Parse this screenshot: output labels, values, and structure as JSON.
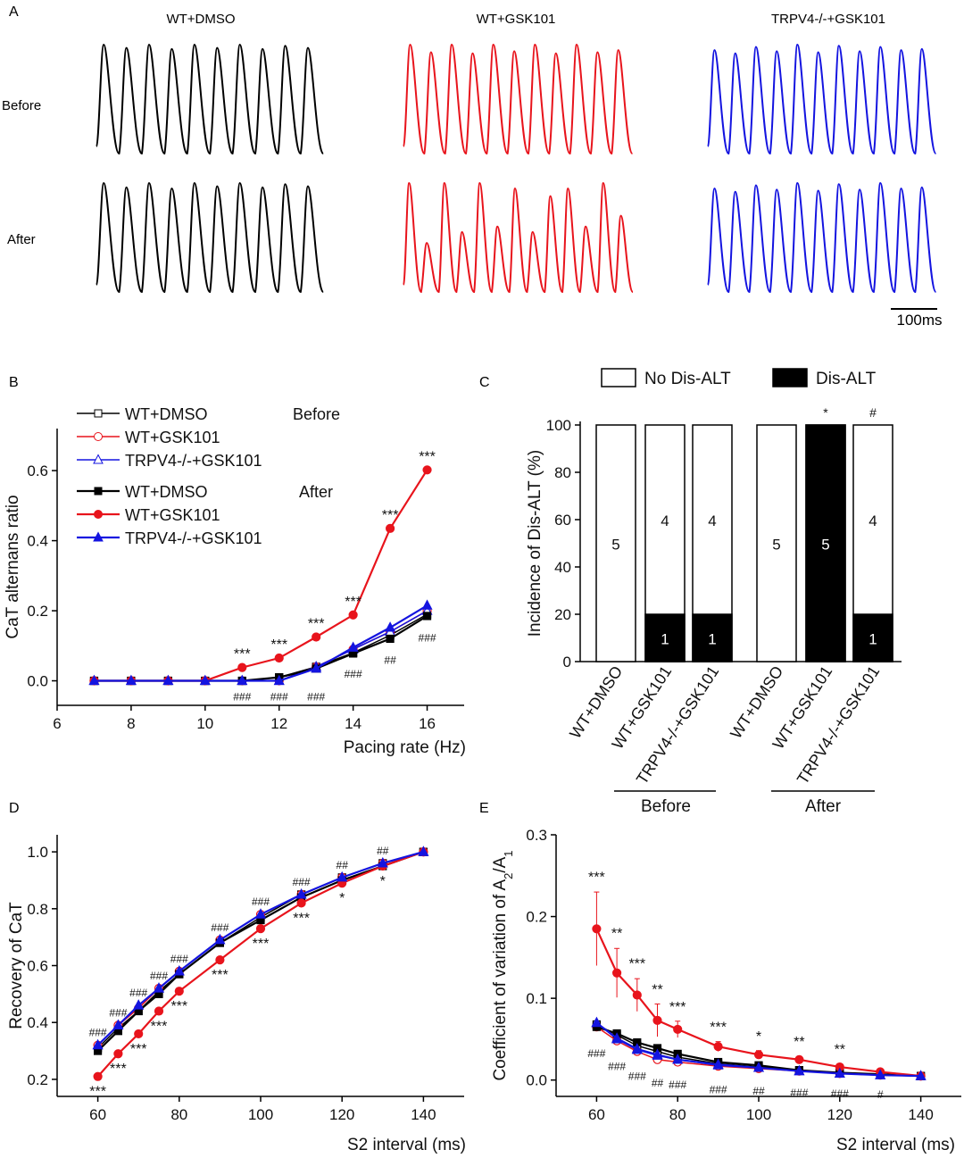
{
  "panel_letters": {
    "a": "A",
    "b": "B",
    "c": "C",
    "d": "D",
    "e": "E"
  },
  "panel_a": {
    "column_titles": [
      "WT+DMSO",
      "WT+GSK101",
      "TRPV4-/-+GSK101"
    ],
    "row_labels": [
      "Before",
      "After"
    ],
    "trace_colors": [
      "#000000",
      "#e8141c",
      "#1414e0"
    ],
    "scale_bar_label": "100ms",
    "traces": {
      "wt_dmso_before": [
        1,
        0.97,
        1,
        0.96,
        1,
        0.97,
        1,
        0.96,
        0.99,
        0.97
      ],
      "wt_gsk_before": [
        1,
        0.93,
        1,
        0.92,
        1,
        0.94,
        1,
        0.92,
        1,
        0.93,
        0.95
      ],
      "trpv4_before": [
        0.95,
        0.92,
        0.98,
        0.94,
        1,
        0.93,
        0.99,
        0.94,
        0.98,
        0.95,
        0.96
      ],
      "wt_dmso_after": [
        1,
        0.96,
        1,
        0.95,
        1,
        0.97,
        1,
        0.96,
        0.99,
        0.97
      ],
      "wt_gsk_after": [
        1,
        0.45,
        1,
        0.55,
        1,
        0.6,
        0.95,
        0.55,
        0.88,
        0.95,
        0.6,
        1,
        0.7
      ],
      "trpv4_after": [
        0.95,
        0.92,
        0.98,
        0.94,
        1,
        0.93,
        0.99,
        0.94,
        1,
        0.95,
        0.96
      ]
    }
  },
  "chart_data": [
    {
      "id": "B",
      "type": "line",
      "xlabel": "Pacing rate (Hz)",
      "ylabel": "CaT alternans ratio",
      "xlim": [
        6,
        17
      ],
      "ylim": [
        -0.07,
        0.72
      ],
      "xticks": [
        6,
        8,
        10,
        12,
        14,
        16
      ],
      "yticks": [
        0.0,
        0.2,
        0.4,
        0.6
      ],
      "x": [
        7,
        8,
        9,
        10,
        11,
        12,
        13,
        14,
        15,
        16
      ],
      "legend_headers": [
        "Before",
        "After"
      ],
      "legend_position": "top-left",
      "series": [
        {
          "name": "WT+DMSO",
          "group": "Before",
          "color": "#000000",
          "marker": "open-square",
          "values": [
            0,
            0,
            0,
            0,
            0,
            0.01,
            0.04,
            0.08,
            0.13,
            0.19
          ]
        },
        {
          "name": "WT+GSK101",
          "group": "Before",
          "color": "#e8141c",
          "marker": "open-circle",
          "values": [
            0,
            0,
            0,
            0,
            0,
            0,
            0.04,
            0.09,
            0.14,
            0.2
          ]
        },
        {
          "name": "TRPV4-/-+GSK101",
          "group": "Before",
          "color": "#1414e0",
          "marker": "open-triangle",
          "values": [
            0,
            0,
            0,
            0,
            0,
            0,
            0.04,
            0.09,
            0.14,
            0.2
          ]
        },
        {
          "name": "WT+DMSO",
          "group": "After",
          "color": "#000000",
          "marker": "square",
          "values": [
            0,
            0,
            0,
            0,
            0,
            0.01,
            0.035,
            0.078,
            0.12,
            0.185
          ]
        },
        {
          "name": "WT+GSK101",
          "group": "After",
          "color": "#e8141c",
          "marker": "circle",
          "values": [
            0,
            0,
            0,
            0,
            0.038,
            0.065,
            0.125,
            0.188,
            0.435,
            0.602
          ]
        },
        {
          "name": "TRPV4-/-+GSK101",
          "group": "After",
          "color": "#1414e0",
          "marker": "triangle",
          "values": [
            0,
            0,
            0,
            0,
            0,
            0,
            0.035,
            0.095,
            0.152,
            0.215
          ]
        }
      ],
      "annotations": [
        {
          "x": 11,
          "text": "***",
          "pos": "above",
          "y": 0.038
        },
        {
          "x": 12,
          "text": "***",
          "pos": "above",
          "y": 0.065
        },
        {
          "x": 13,
          "text": "***",
          "pos": "above",
          "y": 0.125
        },
        {
          "x": 14,
          "text": "***",
          "pos": "above",
          "y": 0.188
        },
        {
          "x": 15,
          "text": "***",
          "pos": "above",
          "y": 0.435
        },
        {
          "x": 16,
          "text": "***",
          "pos": "above",
          "y": 0.602
        },
        {
          "x": 11,
          "text": "###",
          "pos": "below",
          "y": 0
        },
        {
          "x": 12,
          "text": "###",
          "pos": "below",
          "y": 0
        },
        {
          "x": 13,
          "text": "###",
          "pos": "below",
          "y": 0.0
        },
        {
          "x": 14,
          "text": "###",
          "pos": "below",
          "y": 0.065
        },
        {
          "x": 15,
          "text": "##",
          "pos": "below",
          "y": 0.105
        },
        {
          "x": 16,
          "text": "###",
          "pos": "below",
          "y": 0.168
        }
      ]
    },
    {
      "id": "C",
      "type": "bar",
      "ylabel": "Incidence of Dis-ALT  (%)",
      "ylim": [
        0,
        100
      ],
      "yticks": [
        0,
        20,
        40,
        60,
        80,
        100
      ],
      "legend": [
        {
          "name": "No Dis-ALT",
          "color": "#ffffff"
        },
        {
          "name": "Dis-ALT",
          "color": "#000000"
        }
      ],
      "categories": [
        "WT+DMSO",
        "WT+GSK101",
        "TRPV4-/-+GSK101",
        "WT+DMSO",
        "WT+GSK101",
        "TRPV4-/-+GSK101"
      ],
      "groups": [
        {
          "label": "Before",
          "members": [
            0,
            1,
            2
          ]
        },
        {
          "label": "After",
          "members": [
            3,
            4,
            5
          ]
        }
      ],
      "series": [
        {
          "name": "Dis-ALT",
          "values": [
            0,
            20,
            20,
            0,
            100,
            20
          ],
          "counts": [
            "",
            "1",
            "1",
            "",
            "5",
            "1"
          ]
        },
        {
          "name": "No Dis-ALT",
          "values": [
            100,
            80,
            80,
            100,
            0,
            80
          ],
          "counts": [
            "5",
            "4",
            "4",
            "5",
            "",
            "4"
          ]
        }
      ],
      "top_marks": [
        "",
        "",
        "",
        "",
        "*",
        "#"
      ]
    },
    {
      "id": "D",
      "type": "line",
      "xlabel": "S2 interval (ms)",
      "ylabel": "Recovery of CaT",
      "xlim": [
        50,
        150
      ],
      "ylim": [
        0.14,
        1.06
      ],
      "xticks": [
        60,
        80,
        100,
        120,
        140
      ],
      "yticks": [
        0.2,
        0.4,
        0.6,
        0.8,
        1.0
      ],
      "x": [
        60,
        65,
        70,
        75,
        80,
        90,
        100,
        110,
        120,
        130,
        140
      ],
      "series": [
        {
          "name": "WT+DMSO",
          "group": "Before",
          "color": "#000000",
          "marker": "open-square",
          "values": [
            0.31,
            0.38,
            0.44,
            0.51,
            0.57,
            0.68,
            0.77,
            0.85,
            0.91,
            0.96,
            1.0
          ]
        },
        {
          "name": "WT+GSK101",
          "group": "Before",
          "color": "#e8141c",
          "marker": "open-circle",
          "values": [
            0.32,
            0.39,
            0.45,
            0.52,
            0.58,
            0.69,
            0.78,
            0.85,
            0.91,
            0.96,
            1.0
          ]
        },
        {
          "name": "TRPV4-/-+GSK101",
          "group": "Before",
          "color": "#1414e0",
          "marker": "open-triangle",
          "values": [
            0.32,
            0.39,
            0.46,
            0.52,
            0.58,
            0.69,
            0.78,
            0.85,
            0.91,
            0.96,
            1.0
          ]
        },
        {
          "name": "WT+DMSO",
          "group": "After",
          "color": "#000000",
          "marker": "square",
          "values": [
            0.3,
            0.37,
            0.44,
            0.5,
            0.57,
            0.68,
            0.76,
            0.84,
            0.9,
            0.95,
            1.0
          ]
        },
        {
          "name": "WT+GSK101",
          "group": "After",
          "color": "#e8141c",
          "marker": "circle",
          "values": [
            0.21,
            0.29,
            0.36,
            0.44,
            0.51,
            0.62,
            0.73,
            0.82,
            0.89,
            0.95,
            1.0
          ]
        },
        {
          "name": "TRPV4-/-+GSK101",
          "group": "After",
          "color": "#1414e0",
          "marker": "triangle",
          "values": [
            0.32,
            0.39,
            0.46,
            0.52,
            0.58,
            0.69,
            0.78,
            0.85,
            0.91,
            0.96,
            1.0
          ]
        }
      ],
      "annotations": [
        {
          "x": 60,
          "text": "###",
          "pos": "above",
          "y": 0.32
        },
        {
          "x": 65,
          "text": "###",
          "pos": "above",
          "y": 0.39
        },
        {
          "x": 70,
          "text": "###",
          "pos": "above",
          "y": 0.46
        },
        {
          "x": 75,
          "text": "###",
          "pos": "above",
          "y": 0.52
        },
        {
          "x": 80,
          "text": "###",
          "pos": "above",
          "y": 0.58
        },
        {
          "x": 90,
          "text": "###",
          "pos": "above",
          "y": 0.69
        },
        {
          "x": 100,
          "text": "###",
          "pos": "above",
          "y": 0.78
        },
        {
          "x": 110,
          "text": "###",
          "pos": "above",
          "y": 0.85
        },
        {
          "x": 120,
          "text": "##",
          "pos": "above",
          "y": 0.91
        },
        {
          "x": 130,
          "text": "##",
          "pos": "above",
          "y": 0.96
        },
        {
          "x": 60,
          "text": "***",
          "pos": "below",
          "y": 0.21
        },
        {
          "x": 65,
          "text": "***",
          "pos": "below",
          "y": 0.29
        },
        {
          "x": 70,
          "text": "***",
          "pos": "below",
          "y": 0.36
        },
        {
          "x": 75,
          "text": "***",
          "pos": "below",
          "y": 0.44
        },
        {
          "x": 80,
          "text": "***",
          "pos": "below",
          "y": 0.51
        },
        {
          "x": 90,
          "text": "***",
          "pos": "below",
          "y": 0.62
        },
        {
          "x": 100,
          "text": "***",
          "pos": "below",
          "y": 0.73
        },
        {
          "x": 110,
          "text": "***",
          "pos": "below",
          "y": 0.82
        },
        {
          "x": 120,
          "text": "*",
          "pos": "below",
          "y": 0.89
        },
        {
          "x": 130,
          "text": "*",
          "pos": "below",
          "y": 0.95
        }
      ]
    },
    {
      "id": "E",
      "type": "line",
      "xlabel": "S2 interval (ms)",
      "ylabel": "Coefficient of variation of A",
      "ylabel_sub1": "2",
      "ylabel_mid": "/A",
      "ylabel_sub2": "1",
      "xlim": [
        50,
        150
      ],
      "ylim": [
        -0.02,
        0.3
      ],
      "xticks": [
        60,
        80,
        100,
        120,
        140
      ],
      "yticks": [
        0.0,
        0.1,
        0.2,
        0.3
      ],
      "ytick_labels": [
        "0.0",
        "0.1",
        "0.2",
        "0.3"
      ],
      "x": [
        60,
        65,
        70,
        75,
        80,
        90,
        100,
        110,
        120,
        130,
        140
      ],
      "series": [
        {
          "name": "WT+DMSO",
          "group": "Before",
          "color": "#000000",
          "marker": "open-square",
          "values": [
            0.068,
            0.055,
            0.042,
            0.035,
            0.028,
            0.02,
            0.016,
            0.012,
            0.009,
            0.007,
            0.005
          ]
        },
        {
          "name": "WT+GSK101",
          "group": "Before",
          "color": "#e8141c",
          "marker": "open-circle",
          "values": [
            0.065,
            0.048,
            0.035,
            0.025,
            0.022,
            0.017,
            0.014,
            0.011,
            0.008,
            0.006,
            0.005
          ]
        },
        {
          "name": "TRPV4-/-+GSK101",
          "group": "Before",
          "color": "#1414e0",
          "marker": "open-triangle",
          "values": [
            0.07,
            0.05,
            0.037,
            0.03,
            0.025,
            0.018,
            0.015,
            0.011,
            0.008,
            0.006,
            0.005
          ]
        },
        {
          "name": "WT+DMSO",
          "group": "After",
          "color": "#000000",
          "marker": "square",
          "values": [
            0.065,
            0.057,
            0.046,
            0.039,
            0.032,
            0.022,
            0.018,
            0.012,
            0.009,
            0.007,
            0.005
          ]
        },
        {
          "name": "WT+GSK101",
          "group": "After",
          "color": "#e8141c",
          "marker": "circle",
          "values": [
            0.185,
            0.131,
            0.104,
            0.073,
            0.062,
            0.041,
            0.031,
            0.025,
            0.016,
            0.01,
            0.005
          ],
          "errors": [
            0.045,
            0.03,
            0.02,
            0.02,
            0.01,
            0.006,
            0.005,
            0.004,
            0.003,
            0.002,
            0.001
          ]
        },
        {
          "name": "TRPV4-/-+GSK101",
          "group": "After",
          "color": "#1414e0",
          "marker": "triangle",
          "values": [
            0.07,
            0.051,
            0.038,
            0.031,
            0.025,
            0.019,
            0.015,
            0.011,
            0.008,
            0.006,
            0.005
          ]
        }
      ],
      "annotations": [
        {
          "x": 60,
          "text": "***",
          "pos": "above",
          "y": 0.232
        },
        {
          "x": 65,
          "text": "**",
          "pos": "above",
          "y": 0.163
        },
        {
          "x": 70,
          "text": "***",
          "pos": "above",
          "y": 0.126
        },
        {
          "x": 75,
          "text": "**",
          "pos": "above",
          "y": 0.094
        },
        {
          "x": 80,
          "text": "***",
          "pos": "above",
          "y": 0.073
        },
        {
          "x": 90,
          "text": "***",
          "pos": "above",
          "y": 0.048
        },
        {
          "x": 100,
          "text": "*",
          "pos": "above",
          "y": 0.037
        },
        {
          "x": 110,
          "text": "**",
          "pos": "above",
          "y": 0.03
        },
        {
          "x": 120,
          "text": "**",
          "pos": "above",
          "y": 0.021
        },
        {
          "x": 60,
          "text": "###",
          "pos": "below",
          "y": 0.052
        },
        {
          "x": 65,
          "text": "###",
          "pos": "below",
          "y": 0.036
        },
        {
          "x": 70,
          "text": "###",
          "pos": "below",
          "y": 0.024
        },
        {
          "x": 75,
          "text": "##",
          "pos": "below",
          "y": 0.016
        },
        {
          "x": 80,
          "text": "###",
          "pos": "below",
          "y": 0.014
        },
        {
          "x": 90,
          "text": "###",
          "pos": "below",
          "y": 0.008
        },
        {
          "x": 100,
          "text": "##",
          "pos": "below",
          "y": 0.006
        },
        {
          "x": 110,
          "text": "###",
          "pos": "below",
          "y": 0.004
        },
        {
          "x": 120,
          "text": "###",
          "pos": "below",
          "y": 0.003
        },
        {
          "x": 130,
          "text": "#",
          "pos": "below",
          "y": 0.002
        }
      ]
    }
  ]
}
